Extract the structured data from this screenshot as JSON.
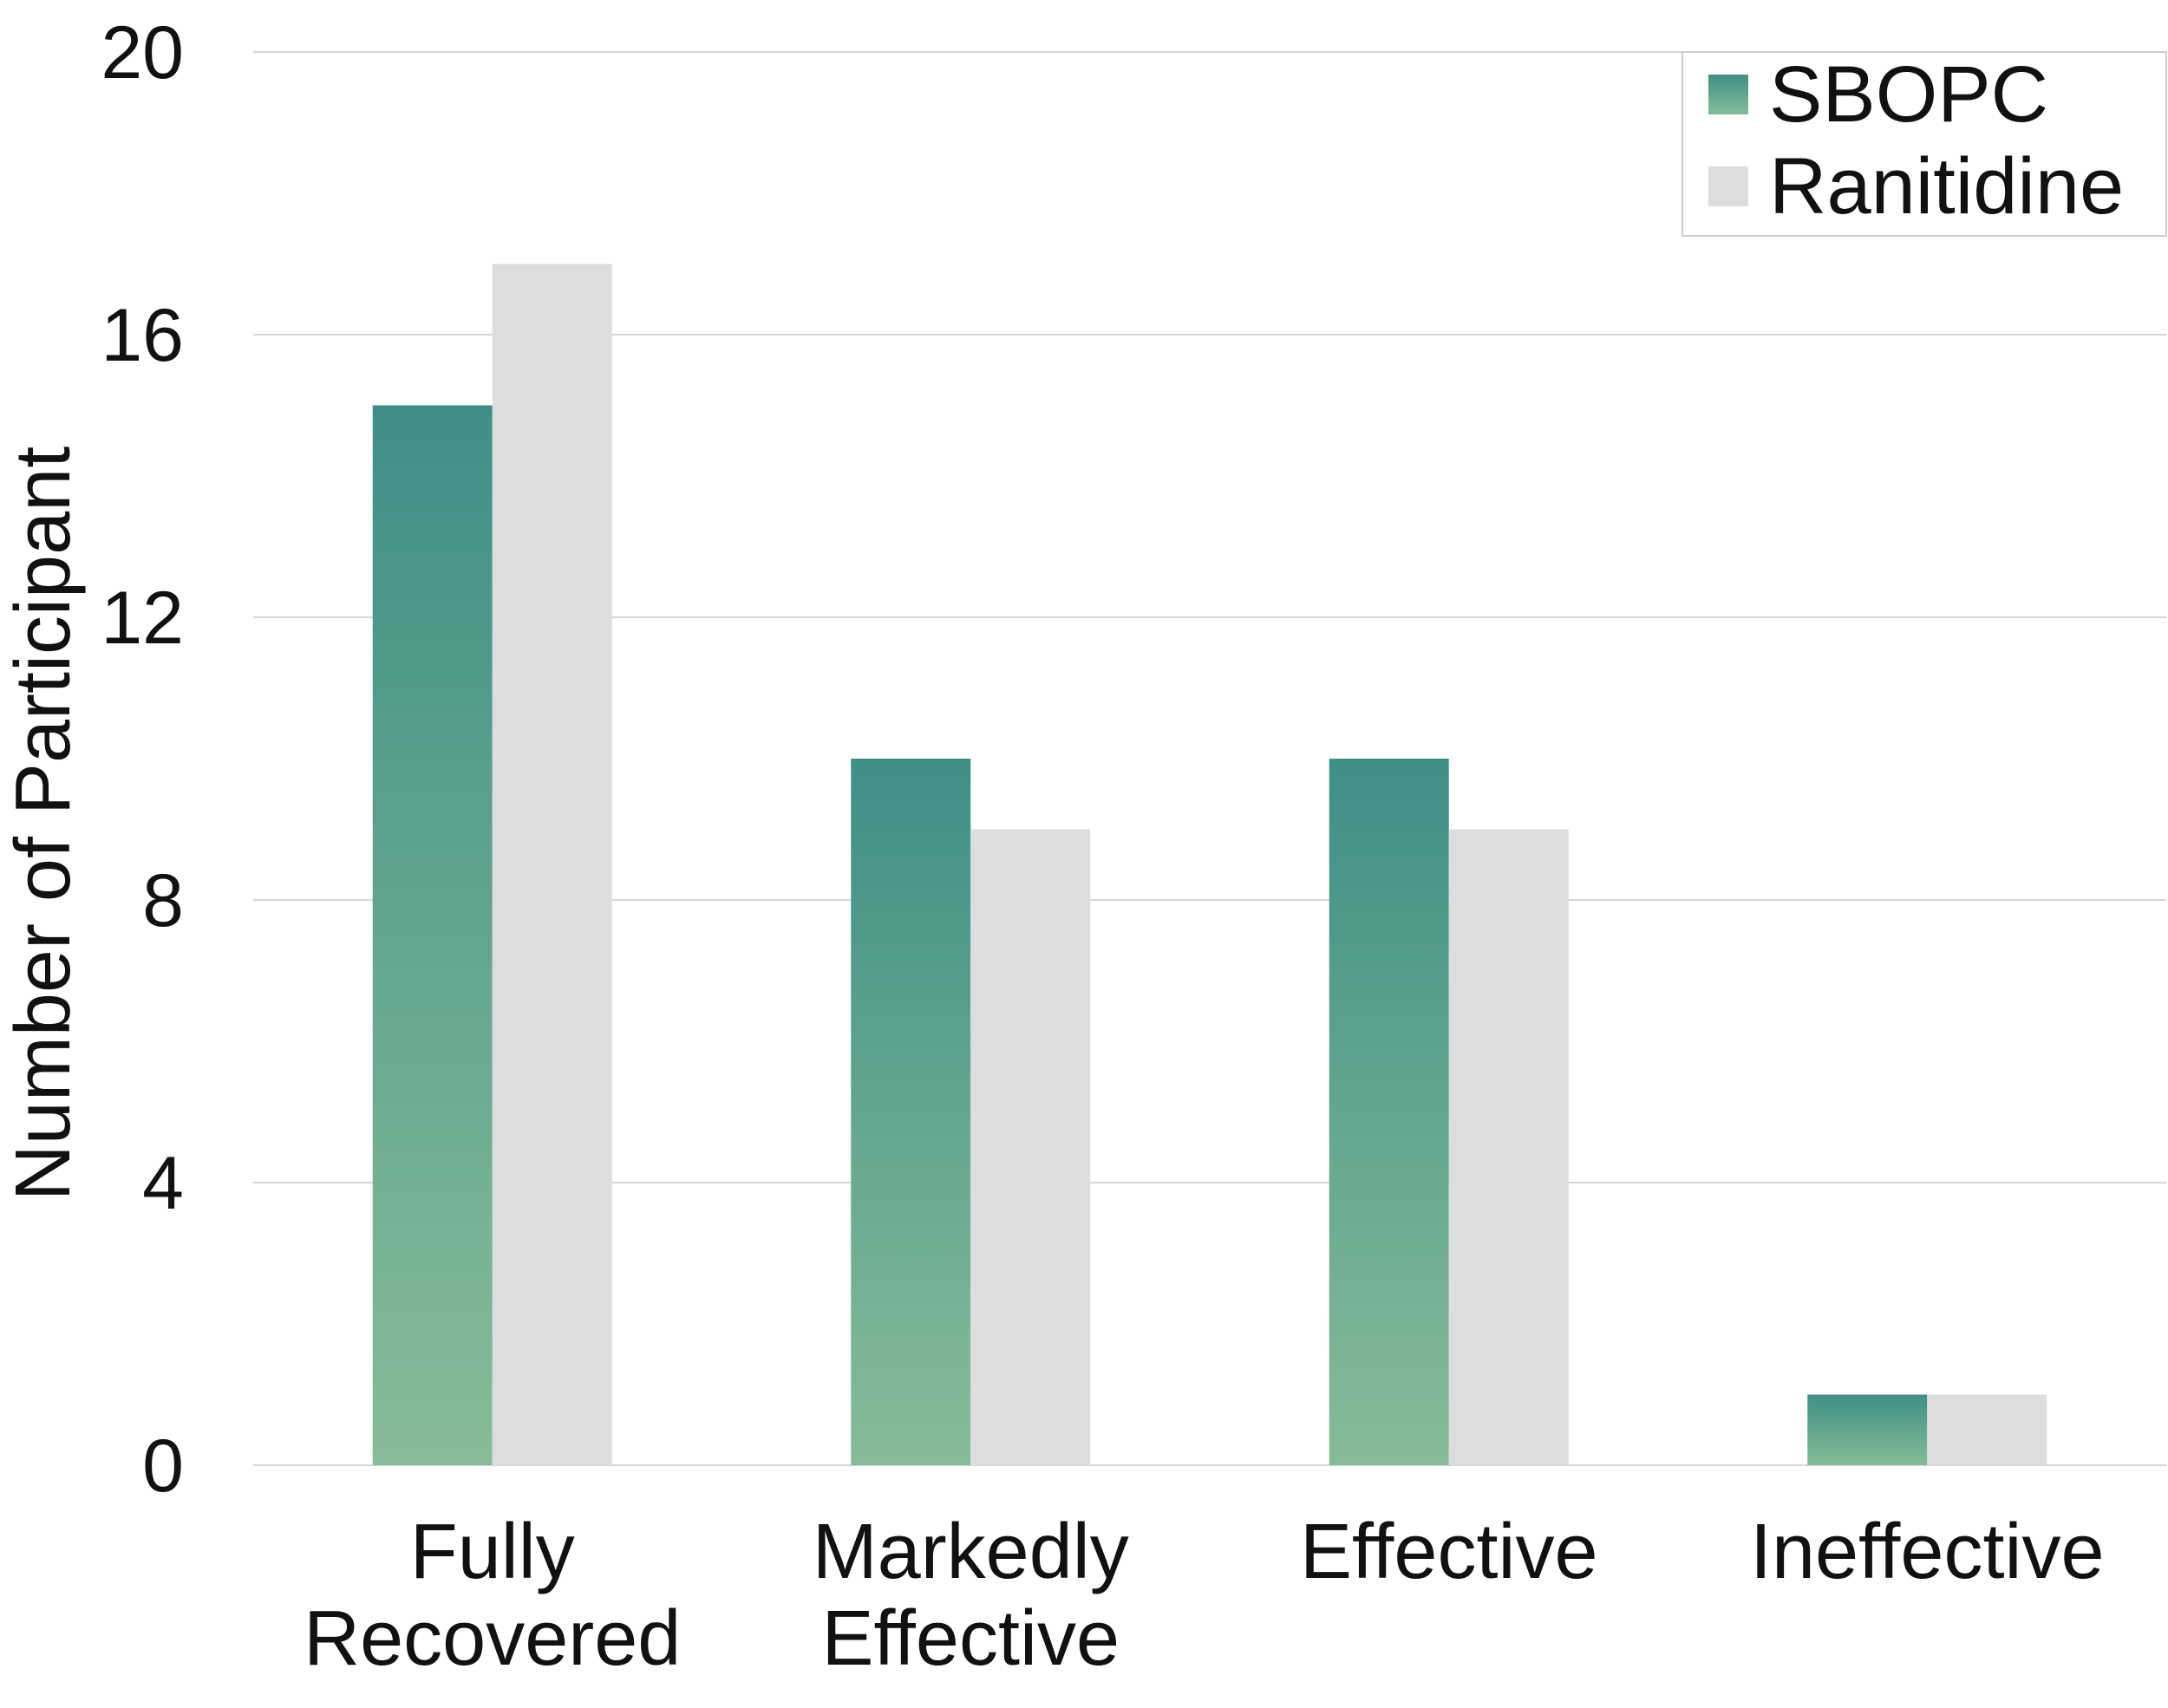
{
  "chart_data": {
    "type": "bar",
    "title": "",
    "xlabel": "",
    "ylabel": "Number of Participant",
    "ylim": [
      0,
      20
    ],
    "yticks": [
      0,
      4,
      8,
      12,
      16,
      20
    ],
    "grid": true,
    "legend_position": "top-right",
    "categories": [
      [
        "Fully",
        "Recovered"
      ],
      [
        "Markedly",
        "Effective"
      ],
      [
        "Effective"
      ],
      [
        "Ineffective"
      ]
    ],
    "series": [
      {
        "name": "SBOPC",
        "values": [
          15,
          10,
          10,
          1
        ],
        "color_top": "#3f8f87",
        "color_bottom": "#86bc97"
      },
      {
        "name": "Ranitidine",
        "values": [
          17,
          9,
          9,
          1
        ],
        "color": "#dcdddf"
      }
    ]
  }
}
